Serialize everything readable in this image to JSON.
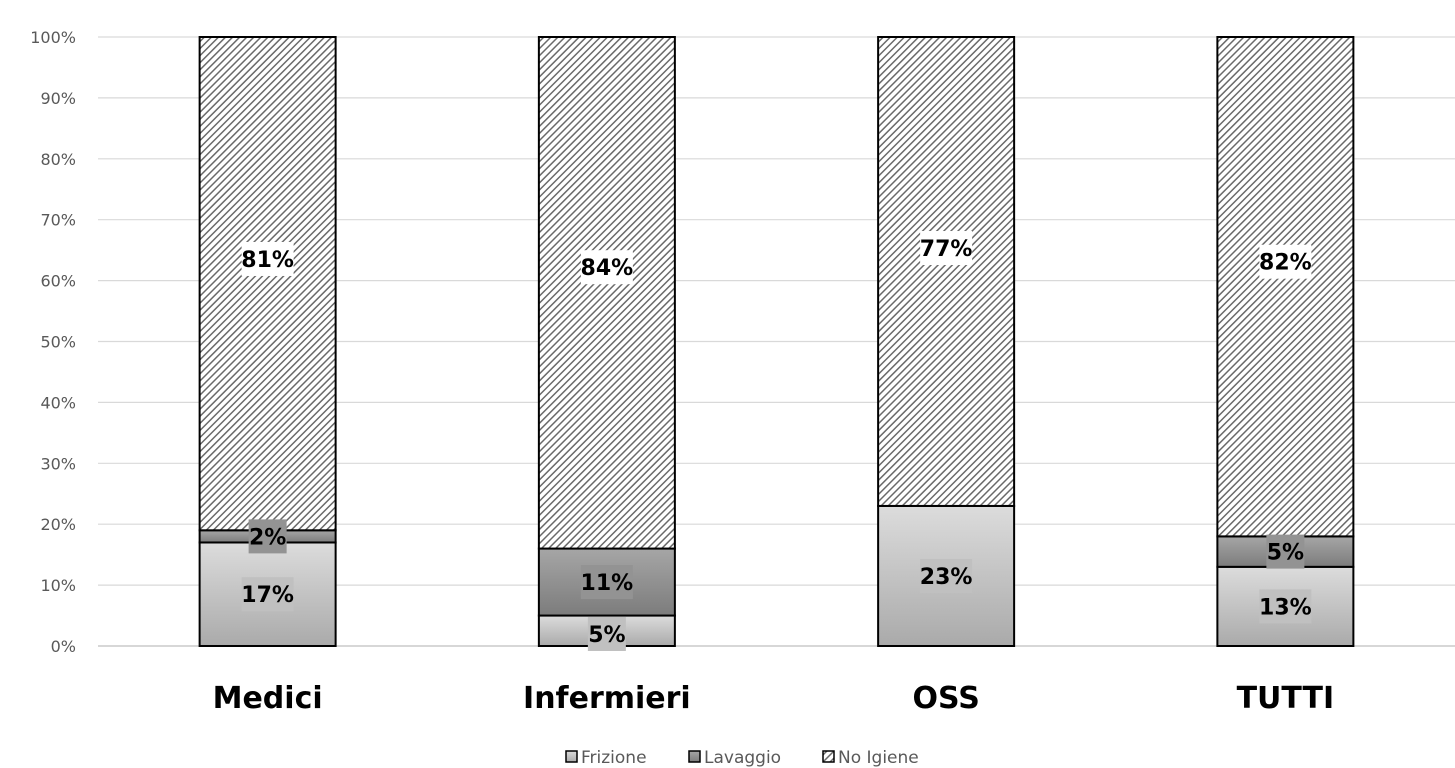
{
  "chart_data": {
    "type": "bar",
    "stacked": true,
    "percent_stacked": true,
    "categories": [
      "Medici",
      "Infermieri",
      "OSS",
      "TUTTI"
    ],
    "series": [
      {
        "name": "Frizione",
        "values": [
          17,
          5,
          23,
          13
        ],
        "color": "#c8c8c8",
        "pattern": "gradient-light"
      },
      {
        "name": "Lavaggio",
        "values": [
          2,
          11,
          0,
          5
        ],
        "color": "#8f8f8f",
        "pattern": "gradient-dark"
      },
      {
        "name": "No Igiene",
        "values": [
          81,
          84,
          77,
          82
        ],
        "color": "#7a7a7a",
        "pattern": "diagonal-hatch"
      }
    ],
    "data_labels": [
      [
        "17%",
        "5%",
        "23%",
        "13%"
      ],
      [
        "2%",
        "11%",
        "",
        "5%"
      ],
      [
        "81%",
        "84%",
        "77%",
        "82%"
      ]
    ],
    "y_ticks": [
      "0%",
      "10%",
      "20%",
      "30%",
      "40%",
      "50%",
      "60%",
      "70%",
      "80%",
      "90%",
      "100%"
    ],
    "ylim": [
      0,
      100
    ],
    "grid": true,
    "legend_position": "bottom",
    "title": "",
    "xlabel": "",
    "ylabel": ""
  }
}
